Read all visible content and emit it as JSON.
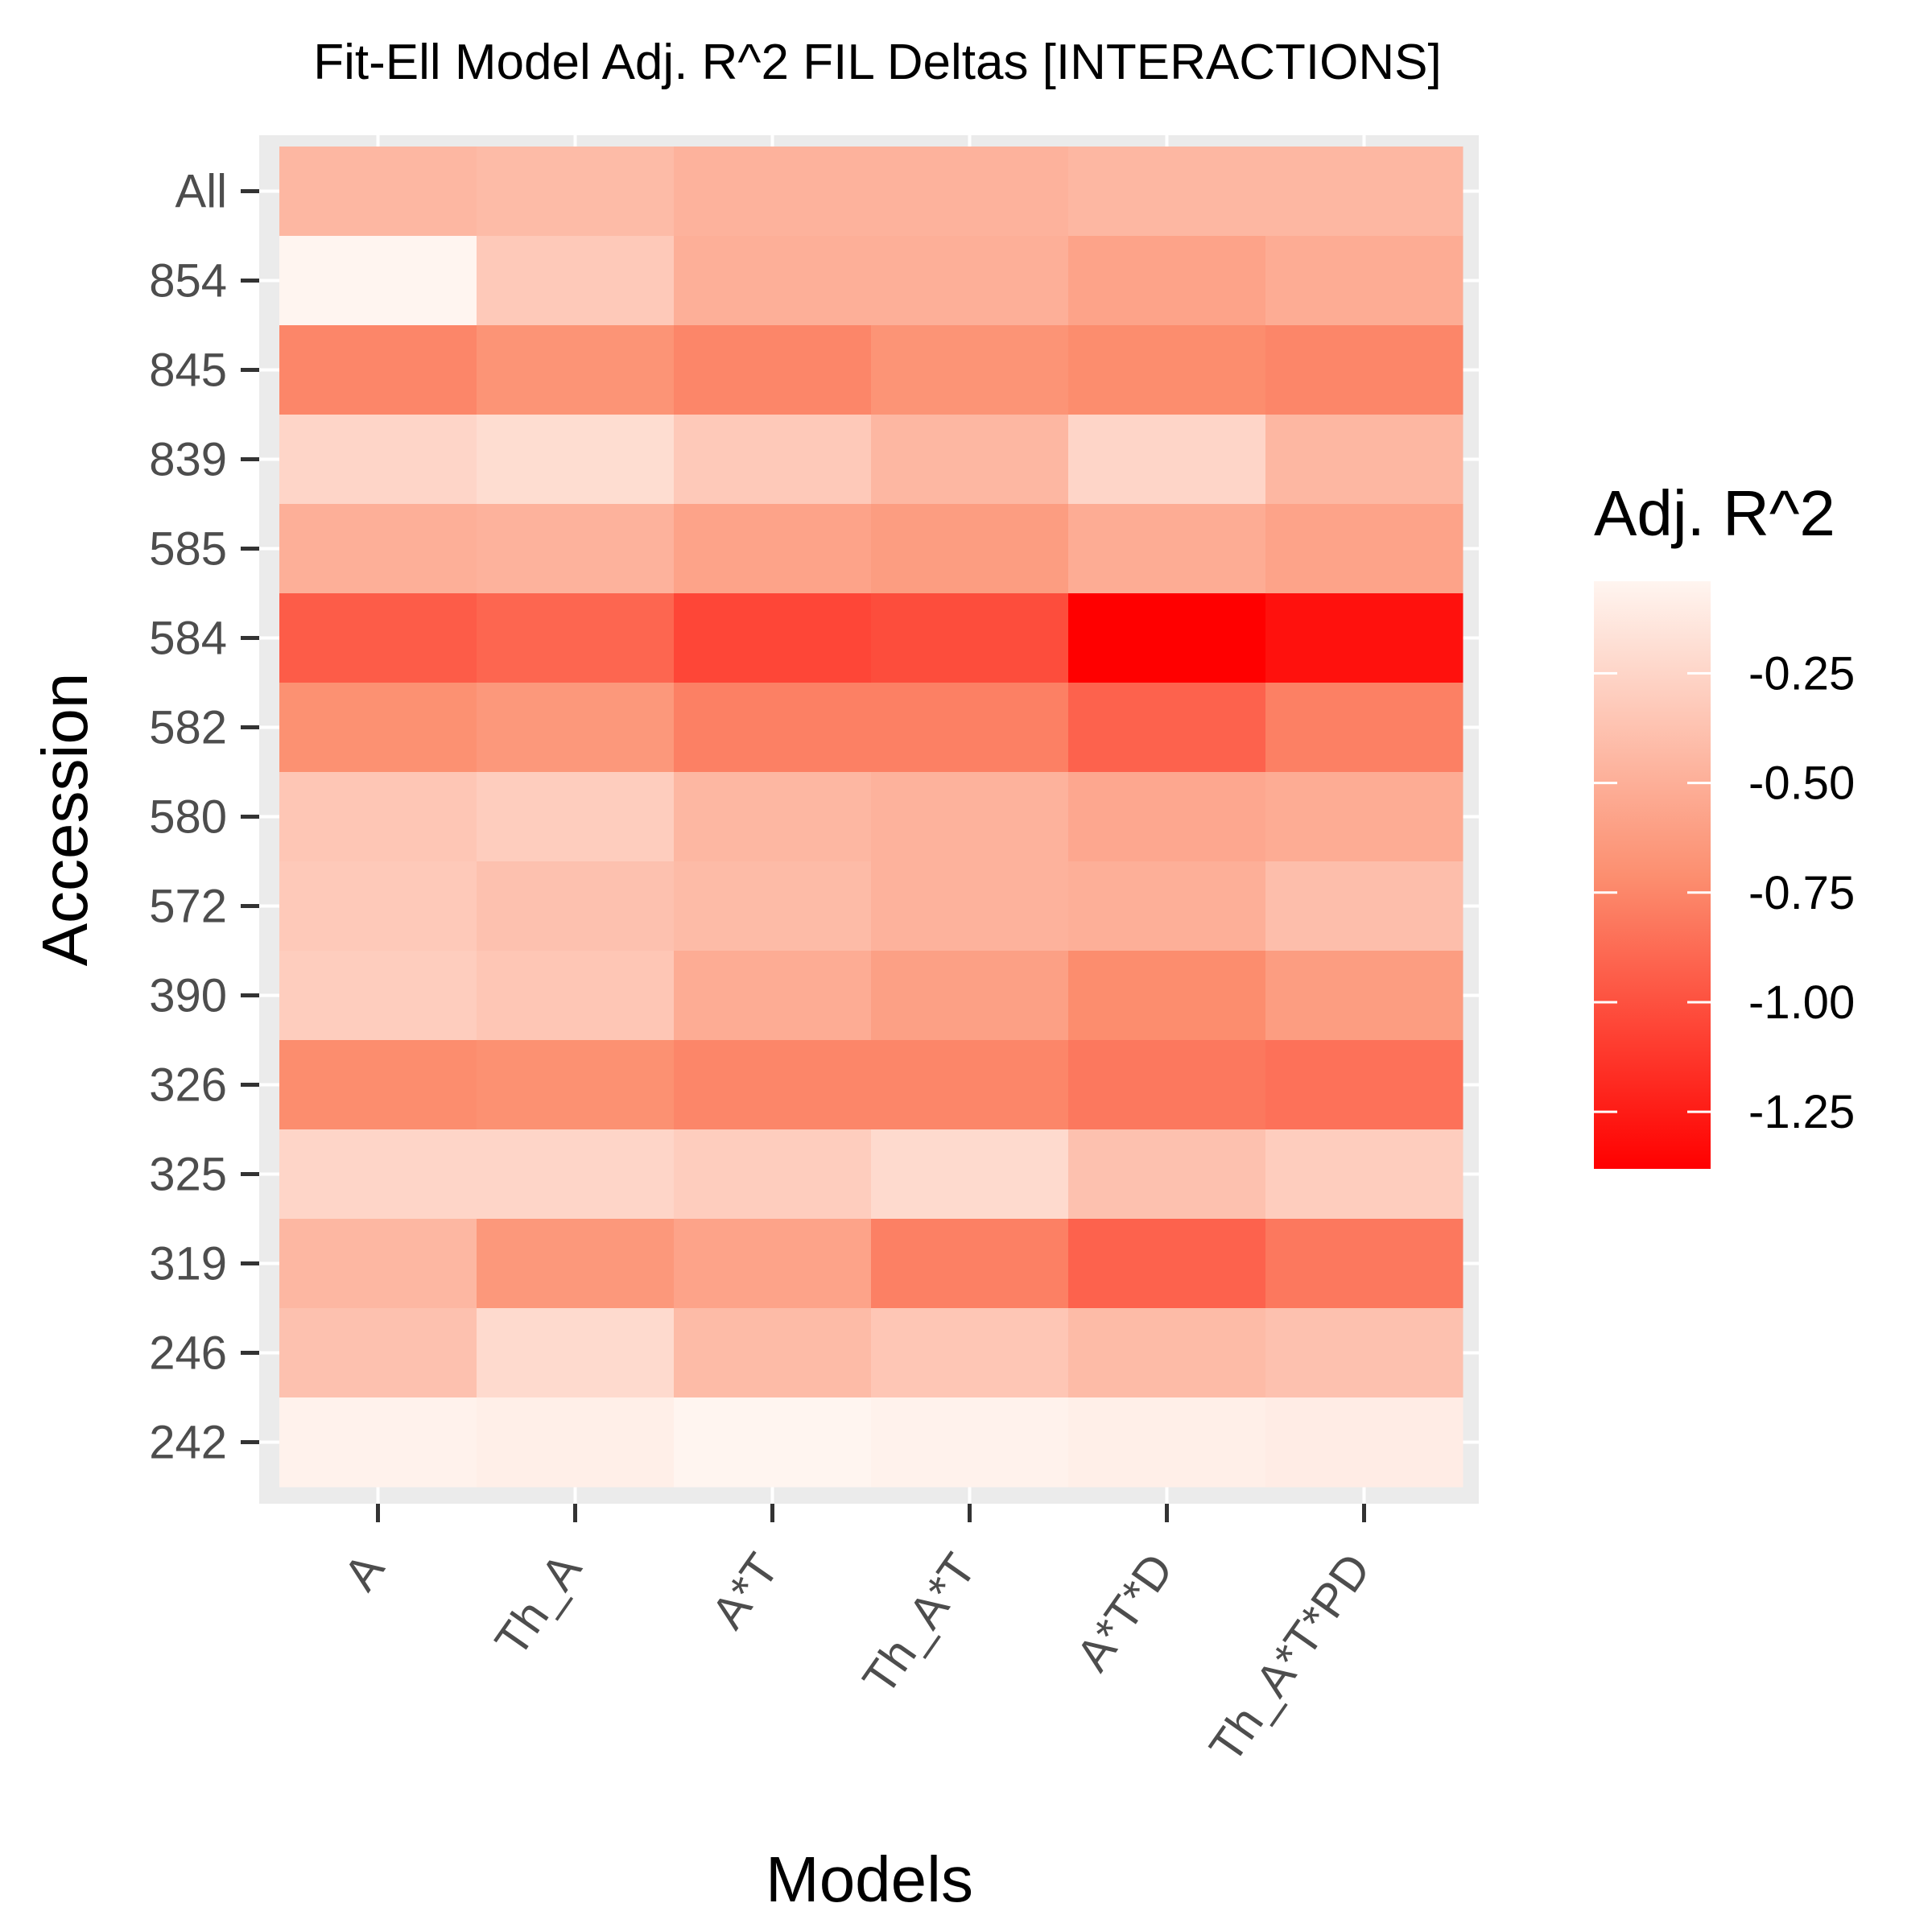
{
  "chart_data": {
    "type": "heatmap",
    "title": "Fit-Ell Model Adj. R^2 FIL Deltas [INTERACTIONS]",
    "xlabel": "Models",
    "ylabel": "Accession",
    "x_categories": [
      "A",
      "Th_A",
      "A*T",
      "Th_A*T",
      "A*T*D",
      "Th_A*T*PD"
    ],
    "y_categories": [
      "All",
      "854",
      "845",
      "839",
      "585",
      "584",
      "582",
      "580",
      "572",
      "390",
      "326",
      "325",
      "319",
      "246",
      "242"
    ],
    "values": [
      [
        -0.45,
        -0.42,
        -0.48,
        -0.48,
        -0.45,
        -0.45
      ],
      [
        -0.04,
        -0.33,
        -0.5,
        -0.5,
        -0.58,
        -0.52
      ],
      [
        -0.75,
        -0.68,
        -0.75,
        -0.68,
        -0.72,
        -0.75
      ],
      [
        -0.25,
        -0.2,
        -0.33,
        -0.45,
        -0.25,
        -0.45
      ],
      [
        -0.5,
        -0.48,
        -0.58,
        -0.62,
        -0.52,
        -0.58
      ],
      [
        -0.95,
        -0.9,
        -1.05,
        -1.02,
        -1.38,
        -1.3
      ],
      [
        -0.7,
        -0.65,
        -0.78,
        -0.78,
        -0.92,
        -0.78
      ],
      [
        -0.35,
        -0.3,
        -0.45,
        -0.48,
        -0.55,
        -0.52
      ],
      [
        -0.33,
        -0.38,
        -0.42,
        -0.48,
        -0.5,
        -0.4
      ],
      [
        -0.3,
        -0.35,
        -0.52,
        -0.6,
        -0.72,
        -0.62
      ],
      [
        -0.72,
        -0.7,
        -0.75,
        -0.75,
        -0.82,
        -0.85
      ],
      [
        -0.25,
        -0.25,
        -0.3,
        -0.22,
        -0.38,
        -0.3
      ],
      [
        -0.45,
        -0.65,
        -0.58,
        -0.78,
        -0.92,
        -0.82
      ],
      [
        -0.38,
        -0.22,
        -0.42,
        -0.35,
        -0.42,
        -0.38
      ],
      [
        -0.06,
        -0.08,
        -0.04,
        -0.06,
        -0.08,
        -0.1
      ]
    ],
    "legend": {
      "title": "Adj. R^2",
      "ticks": [
        -0.25,
        -0.5,
        -0.75,
        -1.0,
        -1.25
      ],
      "tick_labels": [
        "-0.25",
        "-0.50",
        "-0.75",
        "-1.00",
        "-1.25"
      ],
      "range": [
        -1.38,
        -0.04
      ],
      "low_color": "#ff0000",
      "high_color": "#fff5f0",
      "placement": "right"
    },
    "panel_background": "#ebebeb",
    "grid": true
  }
}
